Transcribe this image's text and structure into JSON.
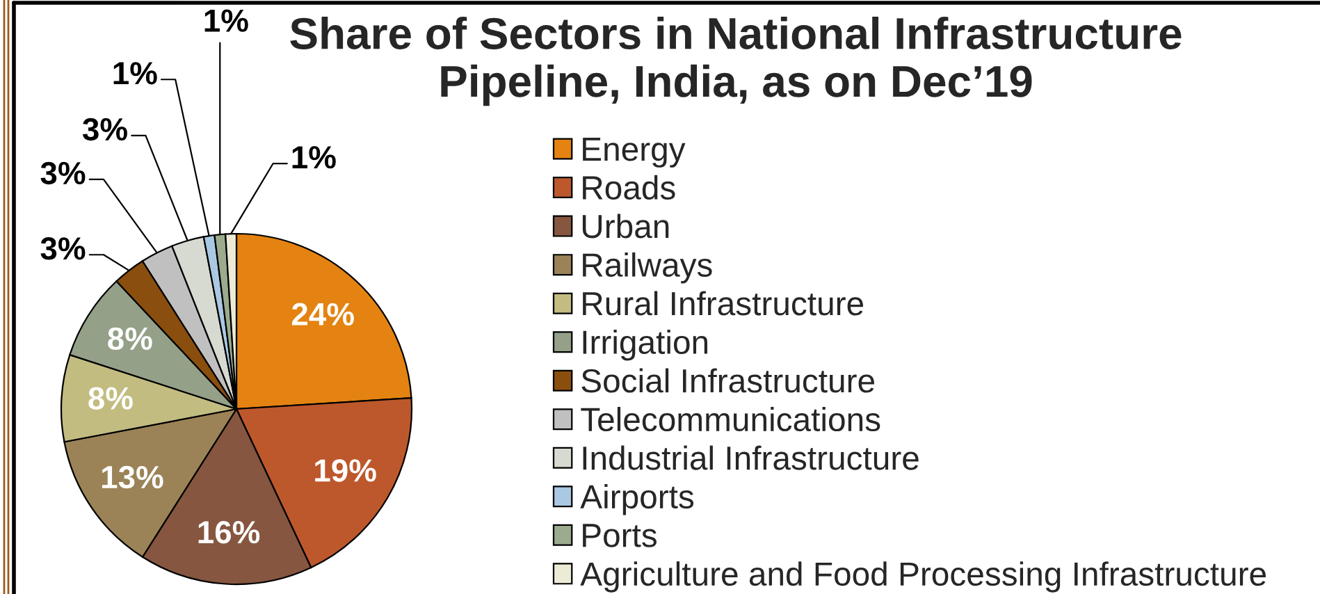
{
  "chart_data": {
    "type": "pie",
    "title": "Share of Sectors in National Infrastructure\nPipeline, India, as on Dec’19",
    "categories": [
      "Energy",
      "Roads",
      "Urban",
      "Railways",
      "Rural Infrastructure",
      "Irrigation",
      "Social Infrastructure",
      "Telecommunications",
      "Industrial Infrastructure",
      "Airports",
      "Ports",
      "Agriculture and Food Processing Infrastructure"
    ],
    "values": [
      24,
      19,
      16,
      13,
      8,
      8,
      3,
      3,
      3,
      1,
      1,
      1
    ],
    "value_labels": [
      "24%",
      "19%",
      "16%",
      "13%",
      "8%",
      "8%",
      "3%",
      "3%",
      "3%",
      "1%",
      "1%",
      "1%"
    ],
    "colors": [
      "#e48312",
      "#bd582c",
      "#865640",
      "#9b8357",
      "#c2bc80",
      "#94a088",
      "#8a4f0e",
      "#c0c0c0",
      "#d6dad0",
      "#aac8e2",
      "#9cab8d",
      "#ecebd6"
    ],
    "legend": "right"
  }
}
